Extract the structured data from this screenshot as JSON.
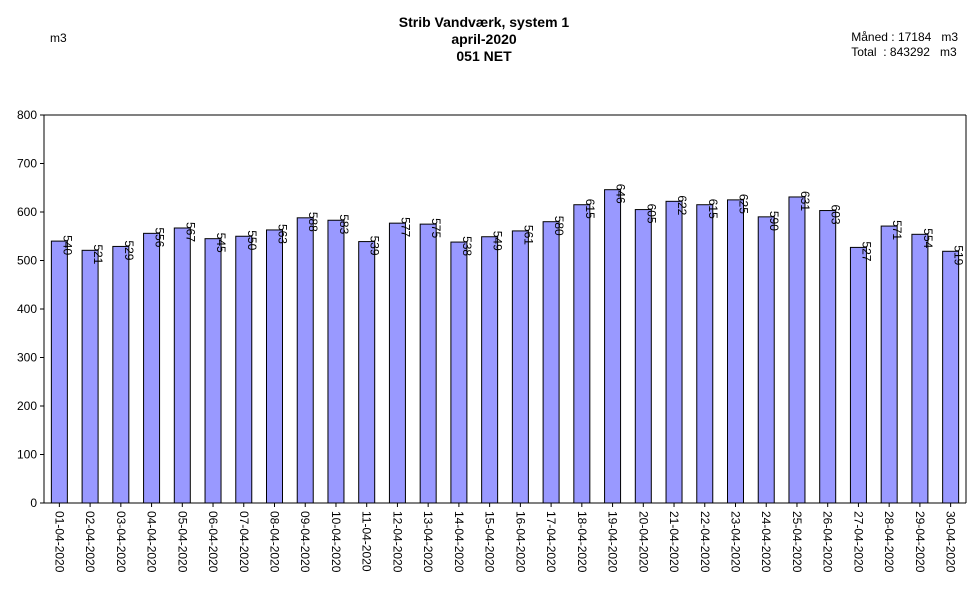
{
  "header": {
    "title_line1": "Strib Vandværk, system 1",
    "title_line2": "april-2020",
    "title_line3": "051 NET",
    "unit_left": "m3",
    "month_label": "Måned",
    "month_value": "17184",
    "month_unit": "m3",
    "total_label": "Total",
    "total_value": "843292",
    "total_unit": "m3"
  },
  "chart_data": {
    "type": "bar",
    "title": "Strib Vandværk, system 1",
    "ylabel": "m3",
    "ylim": [
      0,
      800
    ],
    "yticks": [
      0,
      100,
      200,
      300,
      400,
      500,
      600,
      700,
      800
    ],
    "grid": false,
    "bar_color": "#9999ff",
    "categories": [
      "01-04-2020",
      "02-04-2020",
      "03-04-2020",
      "04-04-2020",
      "05-04-2020",
      "06-04-2020",
      "07-04-2020",
      "08-04-2020",
      "09-04-2020",
      "10-04-2020",
      "11-04-2020",
      "12-04-2020",
      "13-04-2020",
      "14-04-2020",
      "15-04-2020",
      "16-04-2020",
      "17-04-2020",
      "18-04-2020",
      "19-04-2020",
      "20-04-2020",
      "21-04-2020",
      "22-04-2020",
      "23-04-2020",
      "24-04-2020",
      "25-04-2020",
      "26-04-2020",
      "27-04-2020",
      "28-04-2020",
      "29-04-2020",
      "30-04-2020"
    ],
    "values": [
      540,
      521,
      529,
      556,
      567,
      545,
      550,
      563,
      588,
      583,
      539,
      577,
      575,
      538,
      549,
      561,
      580,
      615,
      646,
      605,
      622,
      615,
      625,
      590,
      631,
      603,
      527,
      571,
      554,
      519
    ]
  }
}
